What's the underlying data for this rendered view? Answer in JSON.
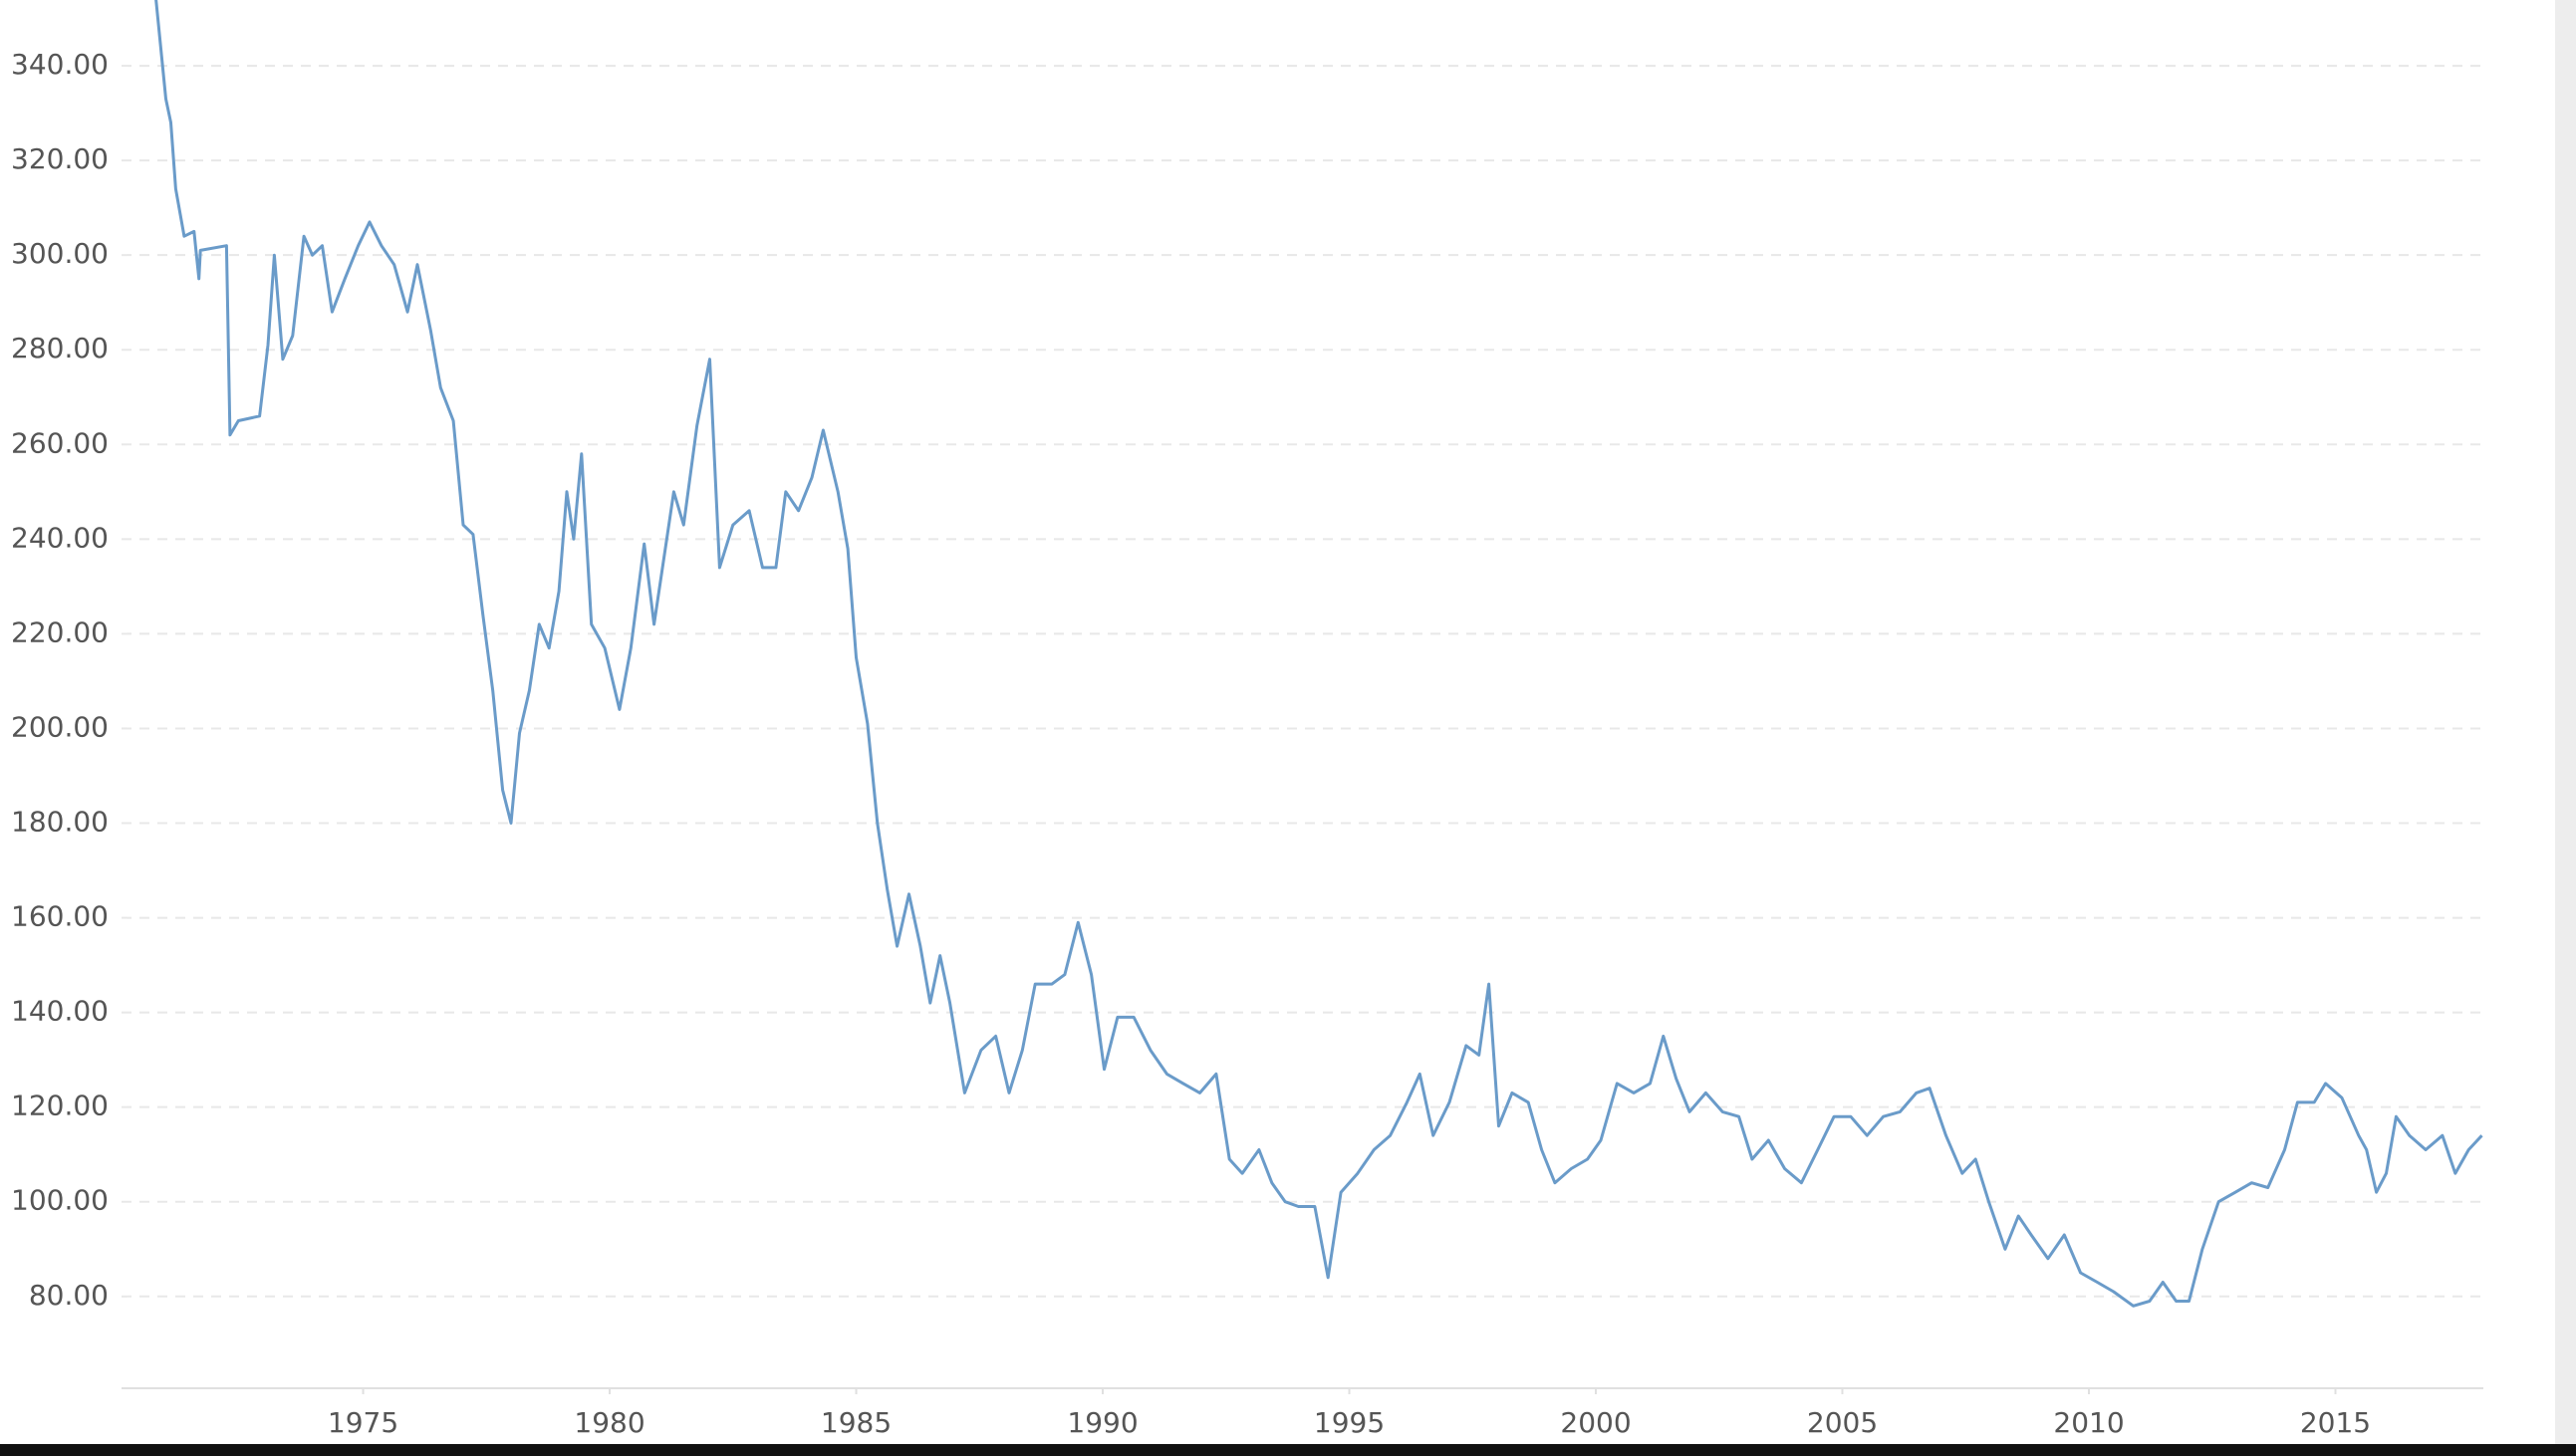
{
  "chart_data": {
    "type": "line",
    "color": "#6a9bc9",
    "grid": true,
    "xlim": [
      1970.1,
      2018.0
    ],
    "ylim": [
      60.6,
      353.9
    ],
    "xticks": [
      1975,
      1980,
      1985,
      1990,
      1995,
      2000,
      2005,
      2010,
      2015
    ],
    "yticks": [
      {
        "value": 80,
        "label": "80.00"
      },
      {
        "value": 100,
        "label": "100.00"
      },
      {
        "value": 120,
        "label": "120.00"
      },
      {
        "value": 140,
        "label": "140.00"
      },
      {
        "value": 160,
        "label": "160.00"
      },
      {
        "value": 180,
        "label": "180.00"
      },
      {
        "value": 200,
        "label": "200.00"
      },
      {
        "value": 220,
        "label": "220.00"
      },
      {
        "value": 240,
        "label": "240.00"
      },
      {
        "value": 260,
        "label": "260.00"
      },
      {
        "value": 280,
        "label": "280.00"
      },
      {
        "value": 300,
        "label": "300.00"
      },
      {
        "value": 320,
        "label": "320.00"
      },
      {
        "value": 340,
        "label": "340.00"
      }
    ],
    "x": [
      1970.8,
      1971.0,
      1971.1,
      1971.2,
      1971.37,
      1971.57,
      1971.67,
      1971.7,
      1972.23,
      1972.3,
      1972.47,
      1972.9,
      1973.07,
      1973.2,
      1973.37,
      1973.57,
      1973.8,
      1973.97,
      1974.17,
      1974.37,
      1974.63,
      1974.9,
      1975.13,
      1975.37,
      1975.63,
      1975.9,
      1976.1,
      1976.37,
      1976.57,
      1976.83,
      1977.03,
      1977.23,
      1977.43,
      1977.63,
      1977.83,
      1978.0,
      1978.17,
      1978.37,
      1978.57,
      1978.77,
      1978.97,
      1979.13,
      1979.27,
      1979.43,
      1979.63,
      1979.9,
      1980.2,
      1980.43,
      1980.7,
      1980.9,
      1981.1,
      1981.3,
      1981.5,
      1981.77,
      1982.03,
      1982.23,
      1982.5,
      1982.83,
      1983.1,
      1983.37,
      1983.57,
      1983.83,
      1984.1,
      1984.33,
      1984.63,
      1984.83,
      1985.0,
      1985.23,
      1985.43,
      1985.63,
      1985.83,
      1986.07,
      1986.3,
      1986.5,
      1986.7,
      1986.9,
      1987.2,
      1987.53,
      1987.83,
      1988.1,
      1988.37,
      1988.63,
      1988.97,
      1989.23,
      1989.5,
      1989.77,
      1990.03,
      1990.3,
      1990.63,
      1990.97,
      1991.3,
      1991.63,
      1991.97,
      1992.3,
      1992.57,
      1992.83,
      1993.17,
      1993.43,
      1993.7,
      1993.97,
      1994.3,
      1994.57,
      1994.83,
      1995.17,
      1995.5,
      1995.83,
      1996.17,
      1996.43,
      1996.7,
      1997.03,
      1997.37,
      1997.63,
      1997.83,
      1998.03,
      1998.3,
      1998.63,
      1998.9,
      1999.17,
      1999.5,
      1999.83,
      2000.1,
      2000.43,
      2000.77,
      2001.1,
      2001.37,
      2001.63,
      2001.9,
      2002.23,
      2002.57,
      2002.9,
      2003.17,
      2003.5,
      2003.83,
      2004.17,
      2004.5,
      2004.83,
      2005.17,
      2005.5,
      2005.83,
      2006.17,
      2006.5,
      2006.77,
      2007.1,
      2007.43,
      2007.7,
      2007.97,
      2008.3,
      2008.57,
      2008.83,
      2009.17,
      2009.5,
      2009.83,
      2010.17,
      2010.5,
      2010.9,
      2011.23,
      2011.5,
      2011.77,
      2012.03,
      2012.3,
      2012.63,
      2012.97,
      2013.3,
      2013.63,
      2013.97,
      2014.23,
      2014.57,
      2014.8,
      2015.13,
      2015.47,
      2015.63,
      2015.83,
      2016.03,
      2016.23,
      2016.5,
      2016.83,
      2017.17,
      2017.43,
      2017.7,
      2017.97
    ],
    "values": [
      354,
      333,
      328,
      314,
      304,
      305,
      295,
      301,
      302,
      262,
      265,
      266,
      281,
      300,
      278,
      283,
      304,
      300,
      302,
      288,
      295,
      302,
      307,
      302,
      298,
      288,
      298,
      284,
      272,
      265,
      243,
      241,
      224,
      208,
      187,
      180,
      199,
      208,
      222,
      217,
      229,
      250,
      240,
      258,
      222,
      217,
      204,
      217,
      239,
      222,
      236,
      250,
      243,
      264,
      278,
      234,
      243,
      246,
      234,
      234,
      250,
      246,
      253,
      263,
      250,
      238,
      215,
      201,
      180,
      166,
      154,
      165,
      154,
      142,
      152,
      142,
      123,
      132,
      135,
      123,
      132,
      146,
      146,
      148,
      159,
      148,
      128,
      139,
      139,
      132,
      127,
      125,
      123,
      127,
      109,
      106,
      111,
      104,
      100,
      99,
      99,
      84,
      102,
      106,
      111,
      114,
      121,
      127,
      114,
      121,
      133,
      131,
      146,
      116,
      123,
      121,
      111,
      104,
      107,
      109,
      113,
      125,
      123,
      125,
      135,
      126,
      119,
      123,
      119,
      118,
      109,
      113,
      107,
      104,
      111,
      118,
      118,
      114,
      118,
      119,
      123,
      124,
      114,
      106,
      109,
      100,
      90,
      97,
      93,
      88,
      93,
      85,
      83,
      81,
      78,
      79,
      83,
      79,
      79,
      90,
      100,
      102,
      104,
      103,
      111,
      121,
      121,
      125,
      122,
      114,
      111,
      102,
      106,
      118,
      114,
      111,
      114,
      106,
      111,
      114
    ]
  }
}
